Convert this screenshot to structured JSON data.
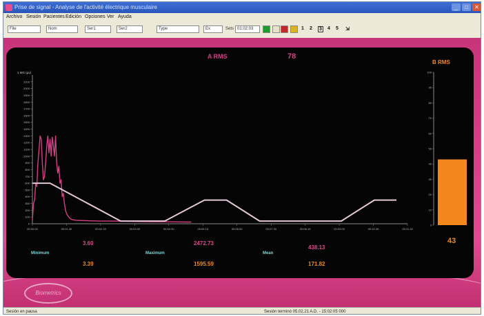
{
  "window": {
    "title": "Prise de signal - Analyse de l'activité électrique musculaire"
  },
  "menu": [
    "Archivo",
    "Sesión",
    "Pacientes",
    "Edición",
    "Opciones",
    "Ver",
    "Ayuda"
  ],
  "toolbar": {
    "box1": "File",
    "box2": "Nom",
    "box3": "Ser1",
    "box4": "Ser2",
    "type_select": "Type",
    "mode_select": "Ex",
    "sets_label": "Sets",
    "sets_value": "01:02:03",
    "numbers": [
      "1",
      "2",
      "3",
      "4",
      "5"
    ]
  },
  "colors": {
    "pink_bg": "#d83d86",
    "emg_line": "#d63f86",
    "template_line": "#e6c8d8",
    "orange": "#f28a1c",
    "cyan": "#7fd8d8",
    "bar_fill": "#f5861c"
  },
  "chart_header": {
    "a_rms_label": "A RMS",
    "a_rms_value": "78",
    "b_rms_label": "B RMS"
  },
  "chart_data": [
    {
      "type": "line",
      "ylabel": "1 MG (µv)",
      "ylim": [
        0,
        2200
      ],
      "yticks": [
        "0",
        "100",
        "200",
        "300",
        "400",
        "500",
        "600",
        "700",
        "800",
        "900",
        "1000",
        "1100",
        "1200",
        "1300",
        "1400",
        "1500",
        "1600",
        "1700",
        "1800",
        "1900",
        "2000",
        "2100"
      ],
      "xticks": [
        "00:00.00",
        "00:01.30",
        "00:02.15",
        "00:03.00",
        "00:04.30",
        "00:05.15",
        "00:06.00",
        "00:07.30",
        "00:08.15",
        "00:09.00",
        "00:10.30",
        "00:11.15"
      ],
      "series": [
        {
          "name": "emg",
          "x": [
            0.0,
            0.05,
            0.1,
            0.15,
            0.2,
            0.25,
            0.3,
            0.35,
            0.4,
            0.45,
            0.5,
            0.55,
            0.6,
            0.65,
            0.7,
            0.75,
            0.8,
            0.85,
            0.9,
            0.95,
            1.0,
            1.05,
            1.1,
            1.15,
            1.2,
            1.25,
            1.3,
            1.35,
            1.4,
            1.45,
            1.5,
            1.55,
            1.6,
            1.65,
            1.7,
            1.75,
            1.8,
            2.0,
            2.5,
            3.0,
            3.5,
            4.0,
            4.5,
            5.0,
            5.5,
            6.0,
            6.5,
            7.0,
            7.2
          ],
          "y": [
            50,
            300,
            350,
            600,
            550,
            900,
            1100,
            1300,
            1250,
            900,
            650,
            700,
            900,
            1150,
            1300,
            1050,
            1250,
            1000,
            1280,
            1150,
            1000,
            1300,
            900,
            750,
            850,
            600,
            650,
            400,
            450,
            300,
            200,
            150,
            120,
            100,
            80,
            70,
            60,
            50,
            45,
            40,
            40,
            38,
            35,
            32,
            30,
            30,
            28,
            25,
            25
          ]
        },
        {
          "name": "template",
          "x": [
            0.0,
            0.8,
            4.0,
            6.0,
            7.8,
            8.8,
            10.3,
            11.3,
            12.3,
            14.0,
            15.5,
            16.5
          ],
          "y": [
            600,
            600,
            40,
            40,
            350,
            350,
            40,
            40,
            40,
            40,
            350,
            350
          ]
        }
      ],
      "xlim": [
        0,
        17
      ]
    },
    {
      "type": "bar",
      "ylim": [
        0,
        100
      ],
      "yticks": [
        "0",
        "10",
        "20",
        "30",
        "40",
        "50",
        "60",
        "70",
        "80",
        "90",
        "100"
      ],
      "values": [
        43
      ],
      "value_label": "43"
    }
  ],
  "stats": {
    "row1": [
      "3.60",
      "2472.73",
      "438.13"
    ],
    "labels": [
      "Minimum",
      "Maximum",
      "Mean"
    ],
    "row2": [
      "3.39",
      "1595.59",
      "171.82"
    ]
  },
  "logo_text": "Biometrics",
  "statusbar": {
    "left": "Sesión en pausa",
    "center": "Sesión terminó 05.02.21 A.D. - 15:02:05 000"
  }
}
